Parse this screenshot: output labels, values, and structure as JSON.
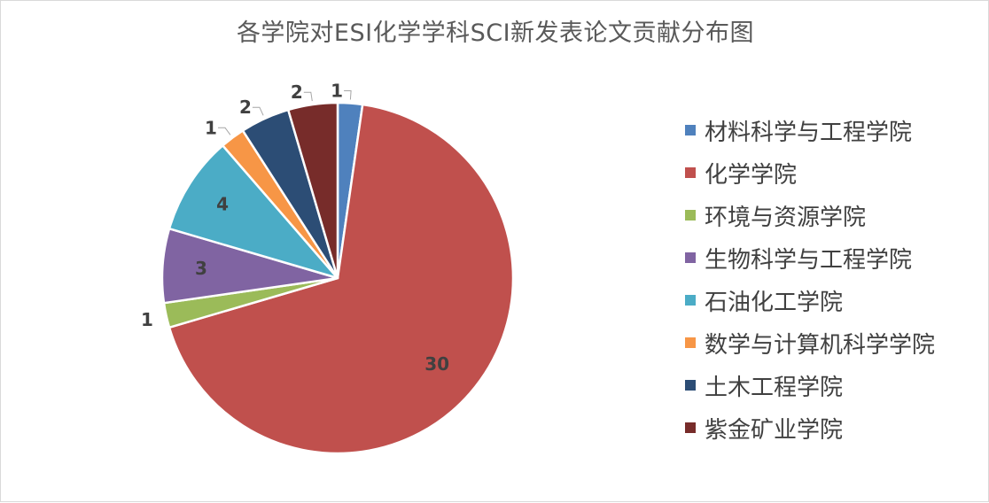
{
  "chart_data": {
    "type": "pie",
    "title": "各学院对ESI化学学科SCI新发表论文贡献分布图",
    "categories": [
      "材料科学与工程学院",
      "化学学院",
      "环境与资源学院",
      "生物科学与工程学院",
      "石油化工学院",
      "数学与计算机科学学院",
      "土木工程学院",
      "紫金矿业学院"
    ],
    "values": [
      1,
      30,
      1,
      3,
      4,
      1,
      2,
      2
    ],
    "colors": [
      "#4f81bd",
      "#c0504d",
      "#9bbb59",
      "#8064a2",
      "#4bacc6",
      "#f79646",
      "#2c4d75",
      "#772c2a"
    ],
    "legend_position": "right",
    "data_labels": true
  }
}
